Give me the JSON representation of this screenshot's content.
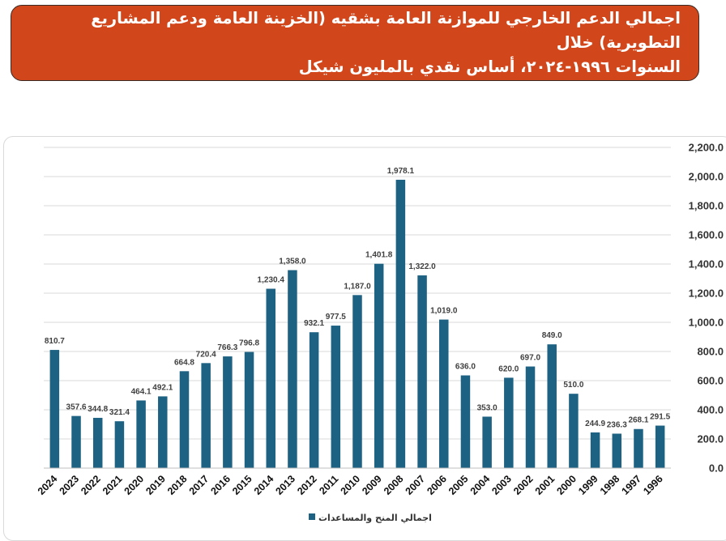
{
  "header": {
    "title_line1": "اجمالي الدعم الخارجي للموازنة العامة بشقيه (الخزينة العامة ودعم المشاريع التطويرية) خلال",
    "title_line2": "السنوات ١٩٩٦-٢٠٢٤، أساس نقدي بالمليون شيكل"
  },
  "colors": {
    "bar": "#1d6283",
    "header_bg": "#d2461b",
    "gridline": "#d9d9d9"
  },
  "chart_data": {
    "type": "bar",
    "title": "",
    "xlabel": "",
    "ylabel": "",
    "ylim": [
      0,
      2200
    ],
    "y_ticks": [
      "0.0",
      "200.0",
      "400.0",
      "600.0",
      "800.0",
      "1,000.0",
      "1,200.0",
      "1,400.0",
      "1,600.0",
      "1,800.0",
      "2,000.0",
      "2,200.0"
    ],
    "y_axis_side": "right",
    "grid": true,
    "legend_position": "bottom",
    "categories": [
      "2024",
      "2023",
      "2022",
      "2021",
      "2020",
      "2019",
      "2018",
      "2017",
      "2016",
      "2015",
      "2014",
      "2013",
      "2012",
      "2011",
      "2010",
      "2009",
      "2008",
      "2007",
      "2006",
      "2005",
      "2004",
      "2003",
      "2002",
      "2001",
      "2000",
      "1999",
      "1998",
      "1997",
      "1996"
    ],
    "series": [
      {
        "name": "اجمالي المنح والمساعدات",
        "values": [
          810.7,
          357.6,
          344.8,
          321.4,
          464.1,
          492.1,
          664.8,
          720.4,
          766.3,
          796.8,
          1230.4,
          1358.0,
          932.1,
          977.5,
          1187.0,
          1401.8,
          1978.1,
          1322.0,
          1019.0,
          636.0,
          353.0,
          620.0,
          697.0,
          849.0,
          510.0,
          244.9,
          236.3,
          268.1,
          291.5
        ],
        "labels": [
          "810.7",
          "357.6",
          "344.8",
          "321.4",
          "464.1",
          "492.1",
          "664.8",
          "720.4",
          "766.3",
          "796.8",
          "1,230.4",
          "1,358.0",
          "932.1",
          "977.5",
          "1,187.0",
          "1,401.8",
          "1,978.1",
          "1,322.0",
          "1,019.0",
          "636.0",
          "353.0",
          "620.0",
          "697.0",
          "849.0",
          "510.0",
          "244.9",
          "236.3",
          "268.1",
          "291.5"
        ]
      }
    ]
  }
}
